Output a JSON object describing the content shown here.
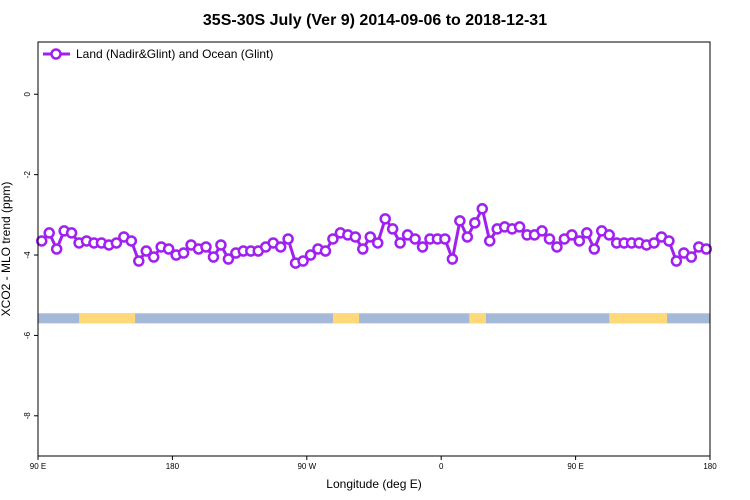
{
  "chart_data": {
    "type": "line",
    "title": "35S-30S July (Ver 9)   2014-09-06 to 2018-12-31",
    "xlabel": "Longitude (deg E)",
    "ylabel": "XCO2 - MLO trend (ppm)",
    "xlim": [
      90,
      450
    ],
    "ylim": [
      -9.0,
      1.3
    ],
    "x_ticks": [
      {
        "value": 90,
        "label": "90 E"
      },
      {
        "value": 162,
        "label": "180"
      },
      {
        "value": 234,
        "label": "90 W"
      },
      {
        "value": 306,
        "label": "0"
      },
      {
        "value": 378,
        "label": "90 E"
      },
      {
        "value": 450,
        "label": "180"
      }
    ],
    "y_ticks": [
      {
        "value": 0,
        "label": "0"
      },
      {
        "value": -2,
        "label": "-2"
      },
      {
        "value": -4,
        "label": "-4"
      },
      {
        "value": -6,
        "label": "-6"
      },
      {
        "value": -8,
        "label": "-8"
      }
    ],
    "legend_position": "top-left",
    "series": [
      {
        "name": "Land (Nadir&Glint) and Ocean (Glint)",
        "color": "#a020f0",
        "x": [
          92,
          96,
          100,
          104,
          108,
          112,
          116,
          120,
          124,
          128,
          132,
          136,
          140,
          144,
          148,
          152,
          156,
          160,
          164,
          168,
          172,
          176,
          180,
          184,
          188,
          192,
          196,
          200,
          204,
          208,
          212,
          216,
          220,
          224,
          228,
          232,
          236,
          240,
          244,
          248,
          252,
          256,
          260,
          264,
          268,
          272,
          276,
          280,
          284,
          288,
          292,
          296,
          300,
          304,
          308,
          312,
          316,
          320,
          324,
          328,
          332,
          336,
          340,
          344,
          348,
          352,
          356,
          360,
          364,
          368,
          372,
          376,
          380,
          384,
          388,
          392,
          396,
          400,
          404,
          408,
          412,
          416,
          420,
          424,
          428,
          432,
          436,
          440,
          444,
          448
        ],
        "values": [
          -3.65,
          -3.45,
          -3.85,
          -3.4,
          -3.45,
          -3.7,
          -3.65,
          -3.7,
          -3.7,
          -3.75,
          -3.7,
          -3.55,
          -3.65,
          -4.15,
          -3.9,
          -4.05,
          -3.8,
          -3.85,
          -4.0,
          -3.95,
          -3.75,
          -3.85,
          -3.8,
          -4.05,
          -3.75,
          -4.1,
          -3.95,
          -3.9,
          -3.9,
          -3.9,
          -3.8,
          -3.7,
          -3.8,
          -3.6,
          -4.2,
          -4.15,
          -4.0,
          -3.85,
          -3.9,
          -3.6,
          -3.45,
          -3.5,
          -3.55,
          -3.85,
          -3.55,
          -3.7,
          -3.1,
          -3.35,
          -3.7,
          -3.5,
          -3.6,
          -3.8,
          -3.6,
          -3.6,
          -3.6,
          -4.1,
          -3.15,
          -3.55,
          -3.2,
          -2.85,
          -3.65,
          -3.35,
          -3.3,
          -3.35,
          -3.3,
          -3.5,
          -3.5,
          -3.4,
          -3.6,
          -3.8,
          -3.6,
          -3.5,
          -3.65,
          -3.45,
          -3.85,
          -3.4,
          -3.5,
          -3.7,
          -3.7,
          -3.7,
          -3.7,
          -3.75,
          -3.7,
          -3.55,
          -3.65,
          -4.15,
          -3.95,
          -4.05,
          -3.8,
          -3.85
        ]
      }
    ],
    "land_ocean_strip": {
      "y_range": [
        -5.7,
        -5.45
      ],
      "ocean_color": "#a4b8d8",
      "land_color": "#fdd97a",
      "land_ranges": [
        [
          112,
          142
        ],
        [
          248,
          262
        ],
        [
          321,
          330
        ],
        [
          396,
          427
        ]
      ]
    }
  }
}
